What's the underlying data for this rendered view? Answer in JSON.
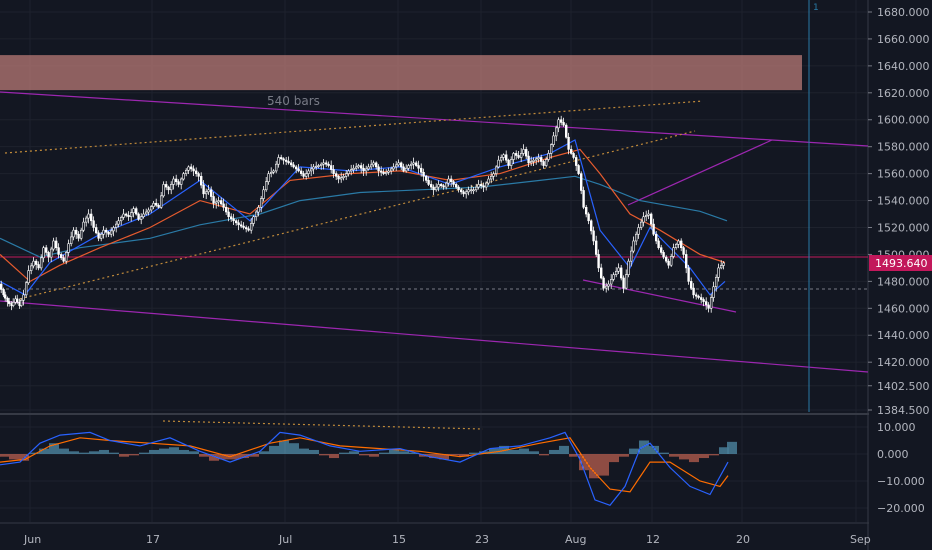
{
  "colors": {
    "background": "#131722",
    "grid": "#1e222d",
    "text": "#b2b5be",
    "candle": "#ffffff",
    "ema_fast": "#2962ff",
    "ema_mid": "#e65b2e",
    "ema_slow": "#2a7aa6",
    "trendline": "#9c27b0",
    "dotted_trend": "#c08a3a",
    "zone": "#b87a76",
    "price_marker": "#c2185b",
    "macd_line": "#2962ff",
    "signal_line": "#ff6d00",
    "hist_pos": "#5fa8c9",
    "hist_neg": "#e0705a"
  },
  "annotations": {
    "bars_label": "540 bars",
    "marker_label": "1"
  },
  "chart_data": [
    {
      "type": "candlestick",
      "title": "",
      "price_ticks": [
        "1680.000",
        "1660.000",
        "1640.000",
        "1620.000",
        "1600.000",
        "1580.000",
        "1560.000",
        "1540.000",
        "1520.000",
        "1500.000",
        "1480.000",
        "1460.000",
        "1440.000",
        "1420.000",
        "1402.500",
        "1384.500"
      ],
      "time_ticks": [
        "Jun",
        "17",
        "Jul",
        "15",
        "23",
        "Aug",
        "12",
        "20",
        "Sep"
      ],
      "ylim": [
        1384.5,
        1688
      ],
      "last_price": "1493.640",
      "grid": true,
      "supply_zone": [
        1622,
        1648
      ],
      "close_path": [
        [
          0,
          1478
        ],
        [
          4,
          1470
        ],
        [
          8,
          1465
        ],
        [
          12,
          1462
        ],
        [
          16,
          1467
        ],
        [
          20,
          1462
        ],
        [
          25,
          1470
        ],
        [
          30,
          1488
        ],
        [
          35,
          1495
        ],
        [
          40,
          1490
        ],
        [
          45,
          1505
        ],
        [
          50,
          1498
        ],
        [
          55,
          1510
        ],
        [
          60,
          1500
        ],
        [
          65,
          1495
        ],
        [
          70,
          1508
        ],
        [
          75,
          1518
        ],
        [
          80,
          1512
        ],
        [
          85,
          1524
        ],
        [
          90,
          1530
        ],
        [
          95,
          1520
        ],
        [
          100,
          1512
        ],
        [
          105,
          1518
        ],
        [
          110,
          1515
        ],
        [
          115,
          1520
        ],
        [
          120,
          1525
        ],
        [
          125,
          1530
        ],
        [
          130,
          1528
        ],
        [
          135,
          1534
        ],
        [
          140,
          1526
        ],
        [
          145,
          1530
        ],
        [
          150,
          1533
        ],
        [
          155,
          1538
        ],
        [
          160,
          1535
        ],
        [
          165,
          1552
        ],
        [
          170,
          1548
        ],
        [
          175,
          1556
        ],
        [
          180,
          1552
        ],
        [
          185,
          1560
        ],
        [
          190,
          1565
        ],
        [
          195,
          1562
        ],
        [
          200,
          1558
        ],
        [
          205,
          1545
        ],
        [
          210,
          1548
        ],
        [
          215,
          1538
        ],
        [
          220,
          1540
        ],
        [
          225,
          1535
        ],
        [
          230,
          1528
        ],
        [
          235,
          1525
        ],
        [
          240,
          1522
        ],
        [
          245,
          1520
        ],
        [
          250,
          1518
        ],
        [
          255,
          1528
        ],
        [
          260,
          1535
        ],
        [
          265,
          1548
        ],
        [
          270,
          1560
        ],
        [
          275,
          1562
        ],
        [
          280,
          1572
        ],
        [
          285,
          1570
        ],
        [
          290,
          1568
        ],
        [
          295,
          1565
        ],
        [
          300,
          1562
        ],
        [
          305,
          1558
        ],
        [
          310,
          1562
        ],
        [
          315,
          1565
        ],
        [
          320,
          1566
        ],
        [
          325,
          1568
        ],
        [
          330,
          1566
        ],
        [
          335,
          1560
        ],
        [
          340,
          1556
        ],
        [
          345,
          1558
        ],
        [
          350,
          1562
        ],
        [
          355,
          1564
        ],
        [
          360,
          1566
        ],
        [
          365,
          1562
        ],
        [
          370,
          1565
        ],
        [
          375,
          1568
        ],
        [
          380,
          1562
        ],
        [
          385,
          1560
        ],
        [
          390,
          1562
        ],
        [
          395,
          1565
        ],
        [
          400,
          1568
        ],
        [
          405,
          1562
        ],
        [
          410,
          1566
        ],
        [
          415,
          1568
        ],
        [
          420,
          1564
        ],
        [
          425,
          1558
        ],
        [
          430,
          1552
        ],
        [
          435,
          1548
        ],
        [
          440,
          1552
        ],
        [
          445,
          1550
        ],
        [
          450,
          1556
        ],
        [
          455,
          1552
        ],
        [
          460,
          1548
        ],
        [
          465,
          1545
        ],
        [
          470,
          1548
        ],
        [
          475,
          1548
        ],
        [
          480,
          1552
        ],
        [
          485,
          1550
        ],
        [
          490,
          1556
        ],
        [
          495,
          1560
        ],
        [
          500,
          1570
        ],
        [
          505,
          1574
        ],
        [
          510,
          1566
        ],
        [
          515,
          1575
        ],
        [
          520,
          1572
        ],
        [
          525,
          1578
        ],
        [
          530,
          1568
        ],
        [
          535,
          1570
        ],
        [
          540,
          1572
        ],
        [
          545,
          1566
        ],
        [
          550,
          1575
        ],
        [
          555,
          1588
        ],
        [
          560,
          1600
        ],
        [
          565,
          1596
        ],
        [
          570,
          1578
        ],
        [
          575,
          1572
        ],
        [
          580,
          1560
        ],
        [
          585,
          1535
        ],
        [
          590,
          1525
        ],
        [
          595,
          1510
        ],
        [
          600,
          1490
        ],
        [
          605,
          1475
        ],
        [
          610,
          1478
        ],
        [
          615,
          1485
        ],
        [
          620,
          1490
        ],
        [
          625,
          1475
        ],
        [
          630,
          1495
        ],
        [
          635,
          1510
        ],
        [
          640,
          1520
        ],
        [
          645,
          1528
        ],
        [
          650,
          1530
        ],
        [
          655,
          1515
        ],
        [
          660,
          1505
        ],
        [
          665,
          1498
        ],
        [
          670,
          1492
        ],
        [
          675,
          1505
        ],
        [
          680,
          1510
        ],
        [
          685,
          1500
        ],
        [
          690,
          1480
        ],
        [
          695,
          1470
        ],
        [
          700,
          1468
        ],
        [
          705,
          1465
        ],
        [
          710,
          1460
        ],
        [
          715,
          1476
        ],
        [
          720,
          1490
        ],
        [
          725,
          1493.64
        ]
      ],
      "ema_fast": [
        [
          0,
          1480
        ],
        [
          25,
          1470
        ],
        [
          50,
          1494
        ],
        [
          100,
          1515
        ],
        [
          150,
          1530
        ],
        [
          200,
          1555
        ],
        [
          250,
          1525
        ],
        [
          300,
          1565
        ],
        [
          350,
          1562
        ],
        [
          400,
          1565
        ],
        [
          450,
          1552
        ],
        [
          500,
          1565
        ],
        [
          550,
          1575
        ],
        [
          575,
          1585
        ],
        [
          600,
          1518
        ],
        [
          630,
          1490
        ],
        [
          650,
          1520
        ],
        [
          690,
          1490
        ],
        [
          710,
          1470
        ],
        [
          725,
          1480
        ]
      ],
      "ema_mid": [
        [
          0,
          1500
        ],
        [
          30,
          1480
        ],
        [
          60,
          1492
        ],
        [
          100,
          1505
        ],
        [
          150,
          1520
        ],
        [
          200,
          1540
        ],
        [
          250,
          1530
        ],
        [
          290,
          1555
        ],
        [
          350,
          1560
        ],
        [
          400,
          1562
        ],
        [
          450,
          1555
        ],
        [
          500,
          1560
        ],
        [
          550,
          1572
        ],
        [
          580,
          1578
        ],
        [
          600,
          1560
        ],
        [
          630,
          1530
        ],
        [
          660,
          1518
        ],
        [
          700,
          1500
        ],
        [
          725,
          1494
        ]
      ],
      "ema_slow": [
        [
          0,
          1512
        ],
        [
          40,
          1498
        ],
        [
          80,
          1505
        ],
        [
          150,
          1512
        ],
        [
          200,
          1522
        ],
        [
          260,
          1530
        ],
        [
          300,
          1540
        ],
        [
          360,
          1546
        ],
        [
          420,
          1548
        ],
        [
          480,
          1550
        ],
        [
          540,
          1555
        ],
        [
          575,
          1558
        ],
        [
          600,
          1552
        ],
        [
          640,
          1540
        ],
        [
          700,
          1532
        ],
        [
          727,
          1525
        ]
      ],
      "series": [
        {
          "name": "",
          "values": []
        }
      ]
    },
    {
      "type": "macd",
      "title": "",
      "y_ticks": [
        "10.000",
        "0.000",
        "-10.000",
        "-20.000"
      ],
      "ylim": [
        -24,
        13
      ],
      "histogram": [
        [
          0,
          -1
        ],
        [
          10,
          -2
        ],
        [
          20,
          -2.5
        ],
        [
          30,
          0.5
        ],
        [
          40,
          2
        ],
        [
          50,
          4
        ],
        [
          60,
          2
        ],
        [
          70,
          1
        ],
        [
          80,
          0.5
        ],
        [
          90,
          1
        ],
        [
          100,
          1.5
        ],
        [
          110,
          0.5
        ],
        [
          120,
          -1
        ],
        [
          130,
          -0.5
        ],
        [
          140,
          0.5
        ],
        [
          150,
          1.5
        ],
        [
          160,
          2
        ],
        [
          170,
          2.5
        ],
        [
          180,
          1.5
        ],
        [
          190,
          1
        ],
        [
          200,
          -1
        ],
        [
          210,
          -2.5
        ],
        [
          220,
          -2
        ],
        [
          230,
          -2
        ],
        [
          240,
          -1.5
        ],
        [
          250,
          -1
        ],
        [
          260,
          1
        ],
        [
          270,
          3
        ],
        [
          280,
          5
        ],
        [
          290,
          4
        ],
        [
          300,
          2
        ],
        [
          310,
          1.5
        ],
        [
          320,
          -0.5
        ],
        [
          330,
          -1.5
        ],
        [
          340,
          0.5
        ],
        [
          350,
          1
        ],
        [
          360,
          -0.5
        ],
        [
          370,
          -1
        ],
        [
          380,
          0.5
        ],
        [
          390,
          1.5
        ],
        [
          400,
          1
        ],
        [
          410,
          0.5
        ],
        [
          420,
          -1
        ],
        [
          430,
          -1.5
        ],
        [
          440,
          -2
        ],
        [
          450,
          -0.5
        ],
        [
          460,
          -1
        ],
        [
          470,
          0.5
        ],
        [
          480,
          1
        ],
        [
          490,
          2
        ],
        [
          500,
          3
        ],
        [
          510,
          1.5
        ],
        [
          520,
          2
        ],
        [
          530,
          1
        ],
        [
          540,
          -0.5
        ],
        [
          550,
          1.5
        ],
        [
          560,
          3
        ],
        [
          570,
          -1
        ],
        [
          580,
          -6
        ],
        [
          590,
          -9
        ],
        [
          600,
          -8
        ],
        [
          610,
          -3
        ],
        [
          620,
          -1
        ],
        [
          630,
          2
        ],
        [
          640,
          5
        ],
        [
          650,
          3
        ],
        [
          660,
          0.5
        ],
        [
          670,
          -1
        ],
        [
          680,
          -2
        ],
        [
          690,
          -3
        ],
        [
          700,
          -1.5
        ],
        [
          710,
          -0.5
        ],
        [
          720,
          2.5
        ],
        [
          728,
          4.5
        ]
      ],
      "macd_line": [
        [
          0,
          -4
        ],
        [
          20,
          -3
        ],
        [
          40,
          4
        ],
        [
          60,
          7
        ],
        [
          90,
          8
        ],
        [
          110,
          5
        ],
        [
          140,
          3
        ],
        [
          170,
          6
        ],
        [
          200,
          1
        ],
        [
          230,
          -3
        ],
        [
          260,
          1
        ],
        [
          280,
          8
        ],
        [
          300,
          7
        ],
        [
          330,
          3
        ],
        [
          360,
          1
        ],
        [
          400,
          2
        ],
        [
          430,
          -1
        ],
        [
          460,
          -3
        ],
        [
          490,
          2
        ],
        [
          520,
          3
        ],
        [
          550,
          6
        ],
        [
          565,
          8
        ],
        [
          580,
          -2
        ],
        [
          595,
          -17
        ],
        [
          610,
          -19
        ],
        [
          625,
          -12
        ],
        [
          640,
          2
        ],
        [
          650,
          4
        ],
        [
          670,
          -5
        ],
        [
          690,
          -12
        ],
        [
          710,
          -15
        ],
        [
          728,
          -3
        ]
      ],
      "signal_line": [
        [
          0,
          -3
        ],
        [
          25,
          -2
        ],
        [
          50,
          3
        ],
        [
          80,
          6
        ],
        [
          110,
          5
        ],
        [
          150,
          4
        ],
        [
          190,
          3
        ],
        [
          230,
          -1
        ],
        [
          270,
          4
        ],
        [
          300,
          6
        ],
        [
          340,
          3
        ],
        [
          380,
          2
        ],
        [
          420,
          1
        ],
        [
          460,
          -1
        ],
        [
          500,
          1
        ],
        [
          540,
          4
        ],
        [
          570,
          6
        ],
        [
          590,
          -5
        ],
        [
          610,
          -13
        ],
        [
          630,
          -14
        ],
        [
          650,
          -3
        ],
        [
          670,
          -3
        ],
        [
          700,
          -10
        ],
        [
          720,
          -12
        ],
        [
          728,
          -8
        ]
      ]
    }
  ]
}
